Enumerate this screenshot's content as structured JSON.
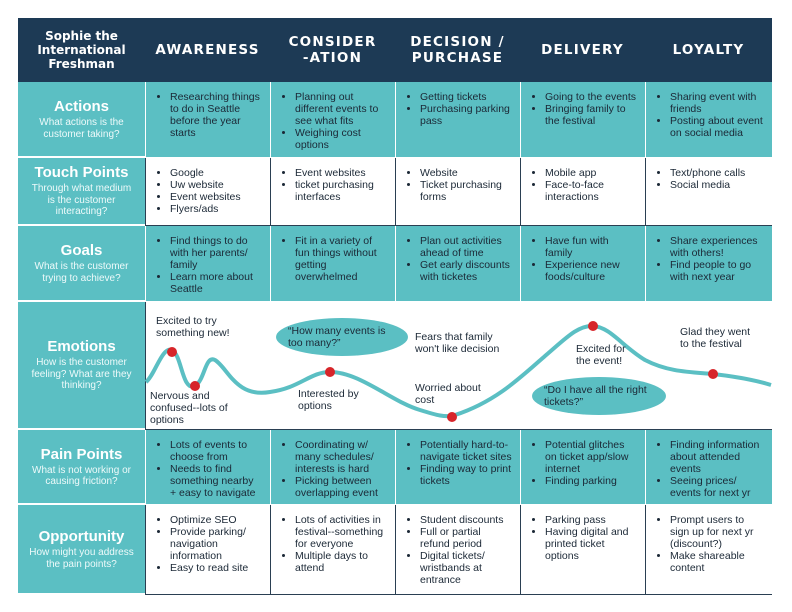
{
  "header": {
    "persona": "Sophie the International Freshman",
    "stages": [
      "AWARENESS",
      "CONSIDER\n-ATION",
      "DECISION /\nPURCHASE",
      "DELIVERY",
      "LOYALTY"
    ]
  },
  "rows": [
    {
      "title": "Actions",
      "subtitle": "What actions is the customer taking?",
      "cells": [
        [
          "Researching things to do in Seattle before the year starts"
        ],
        [
          "Planning out different events to see what fits",
          "Weighing cost options"
        ],
        [
          "Getting tickets",
          "Purchasing parking pass"
        ],
        [
          "Going to the events",
          "Bringing family to the festival"
        ],
        [
          "Sharing event with friends",
          "Posting about event on social media"
        ]
      ]
    },
    {
      "title": "Touch Points",
      "subtitle": "Through what medium is the customer interacting?",
      "cells": [
        [
          "Google",
          "Uw website",
          "Event websites",
          "Flyers/ads"
        ],
        [
          "Event websites",
          "ticket purchasing interfaces"
        ],
        [
          "Website",
          "Ticket purchasing forms"
        ],
        [
          "Mobile app",
          "Face-to-face interactions"
        ],
        [
          "Text/phone calls",
          "Social media"
        ]
      ]
    },
    {
      "title": "Goals",
      "subtitle": "What is the customer trying to achieve?",
      "cells": [
        [
          "Find things to do with her parents/ family",
          "Learn more about Seattle"
        ],
        [
          "Fit in a variety of fun things without getting overwhelmed"
        ],
        [
          "Plan out activities ahead of time",
          "Get early discounts with ticketes"
        ],
        [
          "Have fun with family",
          "Experience new foods/culture"
        ],
        [
          "Share experiences with others!",
          "Find people to go with next year"
        ]
      ]
    },
    {
      "title": "Emotions",
      "subtitle": "How is the customer feeling? What are they thinking?",
      "notes": [
        "Excited to try something new!",
        "Nervous and confused--lots of options",
        "“How many events is too many?”",
        "Interested by options",
        "Fears that family won't like decision",
        "Worried about cost",
        "Excited for the event!",
        "“Do I have all the right tickets?”",
        "Glad they went to the festival"
      ]
    },
    {
      "title": "Pain Points",
      "subtitle": "What is not working or causing friction?",
      "cells": [
        [
          "Lots of events to choose from",
          "Needs to find something nearby + easy to navigate"
        ],
        [
          "Coordinating w/ many schedules/ interests is hard",
          "Picking between overlapping event"
        ],
        [
          "Potentially hard-to-navigate ticket sites",
          "Finding way to print tickets"
        ],
        [
          "Potential glitches on ticket app/slow internet",
          "Finding parking"
        ],
        [
          "Finding information about attended events",
          "Seeing prices/ events for next yr"
        ]
      ]
    },
    {
      "title": "Opportunity",
      "subtitle": "How might you address the pain points?",
      "cells": [
        [
          "Optimize SEO",
          "Provide parking/ navigation information",
          "Easy to read site"
        ],
        [
          "Lots of activities in festival--something for everyone",
          "Multiple days to attend"
        ],
        [
          "Student discounts",
          "Full or partial refund period",
          "Digital tickets/ wristbands at entrance"
        ],
        [
          "Parking pass",
          "Having digital and printed ticket options"
        ],
        [
          "Prompt users to sign up for next yr (discount?)",
          "Make shareable content"
        ]
      ]
    }
  ]
}
